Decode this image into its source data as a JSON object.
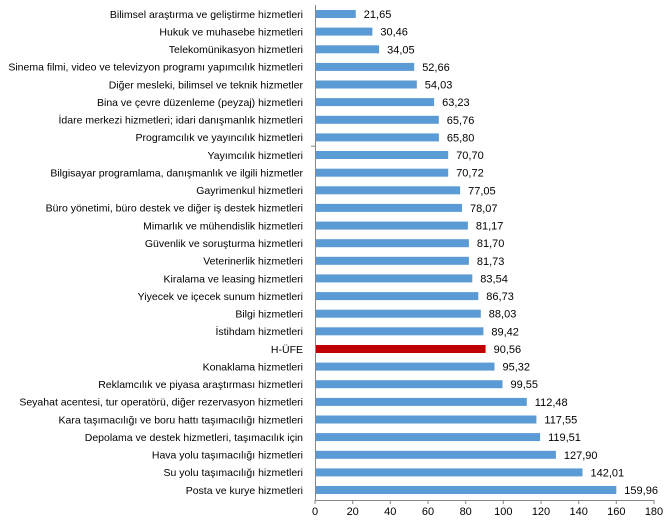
{
  "chart_data": {
    "type": "bar",
    "orientation": "horizontal",
    "title": "",
    "xlabel": "",
    "ylabel": "",
    "xlim": [
      0,
      180
    ],
    "xticks": [
      "0",
      "20",
      "40",
      "60",
      "80",
      "100",
      "120",
      "140",
      "160",
      "180"
    ],
    "grid": false,
    "legend": "none",
    "colors": {
      "default": "#5b9bd5",
      "highlight": "#c00000"
    },
    "highlight_category": "H-ÜFE",
    "categories": [
      "Bilimsel araştırma ve geliştirme hizmetleri",
      "Hukuk ve muhasebe hizmetleri",
      "Telekomünikasyon hizmetleri",
      "Sinema filmi, video ve televizyon programı yapımcılık hizmetleri",
      "Diğer mesleki, bilimsel ve teknik hizmetler",
      "Bina ve çevre düzenleme (peyzaj) hizmetleri",
      "İdare merkezi hizmetleri; idari danışmanlık hizmetleri",
      "Programcılık ve yayıncılık hizmetleri",
      "Yayımcılık hizmetleri",
      "Bilgisayar programlama, danışmanlık ve ilgili hizmetler",
      "Gayrimenkul hizmetleri",
      "Büro yönetimi, büro destek ve diğer iş destek hizmetleri",
      "Mimarlık ve mühendislik hizmetleri",
      "Güvenlik ve soruşturma hizmetleri",
      "Veterinerlik hizmetleri",
      "Kiralama ve leasing hizmetleri",
      "Yiyecek ve içecek sunum hizmetleri",
      "Bilgi hizmetleri",
      "İstihdam hizmetleri",
      "H-ÜFE",
      "Konaklama hizmetleri",
      "Reklamcılık ve piyasa araştırması hizmetleri",
      "Seyahat acentesi, tur operatörü, diğer rezervasyon hizmetleri",
      "Kara taşımacılığı ve boru hattı taşımacılığı hizmetleri",
      "Depolama ve destek hizmetleri, taşımacılık için",
      "Hava yolu taşımacılığı hizmetleri",
      "Su yolu taşımacılığı hizmetleri",
      "Posta ve kurye hizmetleri"
    ],
    "values": [
      21.65,
      30.46,
      34.05,
      52.66,
      54.03,
      63.23,
      65.76,
      65.8,
      70.7,
      70.72,
      77.05,
      78.07,
      81.17,
      81.7,
      81.73,
      83.54,
      86.73,
      88.03,
      89.42,
      90.56,
      95.32,
      99.55,
      112.48,
      117.55,
      119.51,
      127.9,
      142.01,
      159.96
    ],
    "value_labels": [
      "21,65",
      "30,46",
      "34,05",
      "52,66",
      "54,03",
      "63,23",
      "65,76",
      "65,80",
      "70,70",
      "70,72",
      "77,05",
      "78,07",
      "81,17",
      "81,70",
      "81,73",
      "83,54",
      "86,73",
      "88,03",
      "89,42",
      "90,56",
      "95,32",
      "99,55",
      "112,48",
      "117,55",
      "119,51",
      "127,90",
      "142,01",
      "159,96"
    ]
  }
}
